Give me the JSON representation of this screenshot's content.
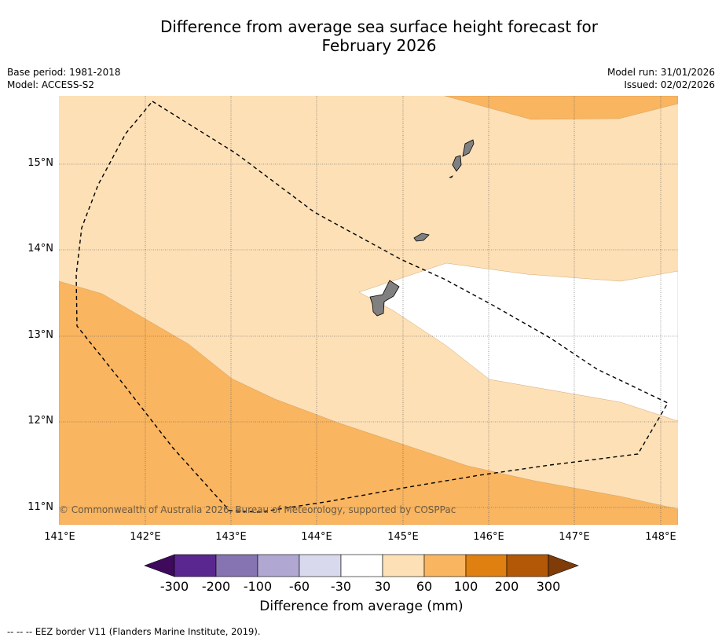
{
  "title_line1": "Difference from average sea surface height forecast for",
  "title_line2": "February 2026",
  "meta": {
    "base_period": "Base period: 1981-2018",
    "model": "Model: ACCESS-S2",
    "model_run": "Model run: 31/01/2026",
    "issued": "Issued: 02/02/2026"
  },
  "map": {
    "lat_labels": [
      "15°N",
      "14°N",
      "13°N",
      "12°N",
      "11°N"
    ],
    "lon_labels": [
      "141°E",
      "142°E",
      "143°E",
      "144°E",
      "145°E",
      "146°E",
      "147°E",
      "148°E"
    ],
    "copyright": "© Commonwealth of Australia 2026, Bureau of Meteorology, supported by COSPPac",
    "colors": {
      "band_30_60": "#fde0b6",
      "band_60_100": "#f9b560",
      "band_neutral": "#ffffff",
      "land": "#808080",
      "eez_line": "#000000"
    }
  },
  "colorbar": {
    "ticks": [
      "-300",
      "-200",
      "-100",
      "-60",
      "-30",
      "30",
      "60",
      "100",
      "200",
      "300"
    ],
    "colors": [
      "#3f0a5c",
      "#5a2790",
      "#8573b2",
      "#b0a8d3",
      "#d8d9ec",
      "#ffffff",
      "#fde0b6",
      "#f9b560",
      "#e08010",
      "#b35806",
      "#7f3b08"
    ],
    "title": "Difference from average (mm)"
  },
  "footnote": "--  --  -- EEZ border V11 (Flanders Marine Institute, 2019)."
}
